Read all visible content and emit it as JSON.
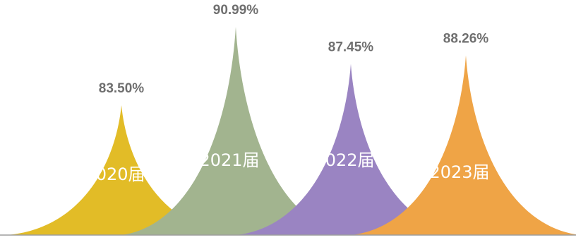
{
  "chart_data": {
    "type": "bar",
    "shape": "pointed-peak",
    "title": "",
    "xlabel": "",
    "ylabel": "",
    "categories": [
      "2020届",
      "2021届",
      "2022届",
      "2023届"
    ],
    "values": [
      83.5,
      90.99,
      87.45,
      88.26
    ],
    "value_labels": [
      "83.50%",
      "90.99%",
      "87.45%",
      "88.26%"
    ],
    "colors": [
      "#e2bc27",
      "#a2b48f",
      "#9a84c2",
      "#efa446"
    ],
    "baseline_color": "#9e9e9e",
    "grid": false,
    "legend": "none"
  }
}
